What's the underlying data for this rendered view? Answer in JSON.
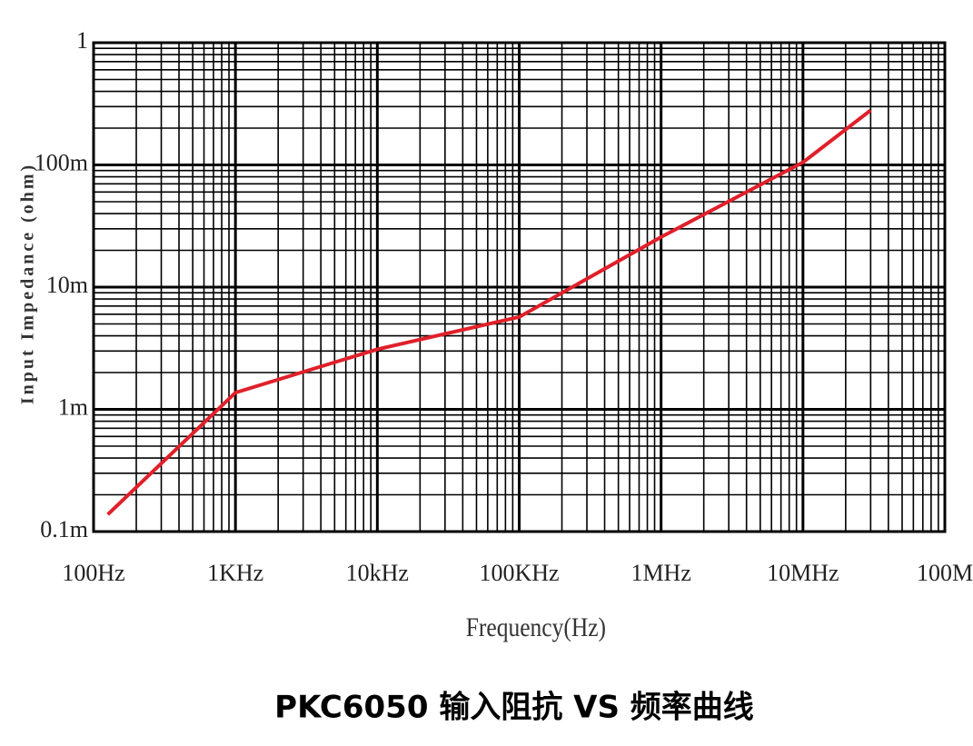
{
  "chart_data": {
    "type": "line",
    "title": "PKC6050 输入阻抗 VS 频率曲线",
    "x_label": "Frequency(Hz)",
    "y_label": "Input Impedance (ohm)",
    "x": [
      126,
      1000,
      10000,
      100000,
      1000000,
      10000000,
      30000000
    ],
    "series": [
      {
        "name": "Input Impedance",
        "color": "#e0202a",
        "values": [
          0.000138,
          0.00137,
          0.0031,
          0.0057,
          0.0257,
          0.105,
          0.28
        ]
      }
    ],
    "xlim": [
      100,
      100000000
    ],
    "ylim": [
      0.0001,
      1
    ],
    "xticks": [
      {
        "value": 100,
        "label": "100Hz"
      },
      {
        "value": 1000,
        "label": "1KHz"
      },
      {
        "value": 10000,
        "label": "10kHz"
      },
      {
        "value": 100000,
        "label": "100KHz"
      },
      {
        "value": 1000000,
        "label": "1MHz"
      },
      {
        "value": 10000000,
        "label": "10MHz"
      },
      {
        "value": 100000000,
        "label": "100M"
      }
    ],
    "yticks": [
      {
        "value": 0.0001,
        "label": "0.1m"
      },
      {
        "value": 0.001,
        "label": "1m"
      },
      {
        "value": 0.01,
        "label": "10m"
      },
      {
        "value": 0.1,
        "label": "100m"
      },
      1
    ],
    "xscale": "log",
    "yscale": "log",
    "grid": true,
    "minor_grid": true
  }
}
